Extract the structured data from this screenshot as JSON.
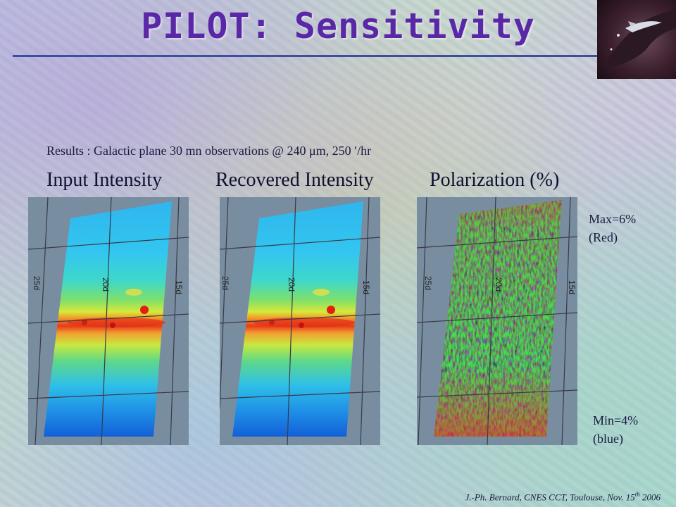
{
  "title": "PILOT: Sensitivity",
  "results_line": "Results :  Galactic plane 30 mn observations @ 240 μm, 250 ′/hr",
  "columns": {
    "input": "Input Intensity",
    "recovered": "Recovered Intensity",
    "polarization": "Polarization (%)"
  },
  "grid_labels": {
    "left": "25d",
    "middle": "20d",
    "right": "15d"
  },
  "scale": {
    "max_value": "Max=6%",
    "max_color": "(Red)",
    "min_value": "Min=4%",
    "min_color": "(blue)"
  },
  "footer": {
    "text": "J.-Ph. Bernard, CNES CCT, Toulouse, Nov. 15",
    "superscript": "th",
    "year": " 2006"
  },
  "colors": {
    "title": "#5a28a6",
    "rule": "#3c4ea0",
    "panel_bg": "#788da0"
  }
}
